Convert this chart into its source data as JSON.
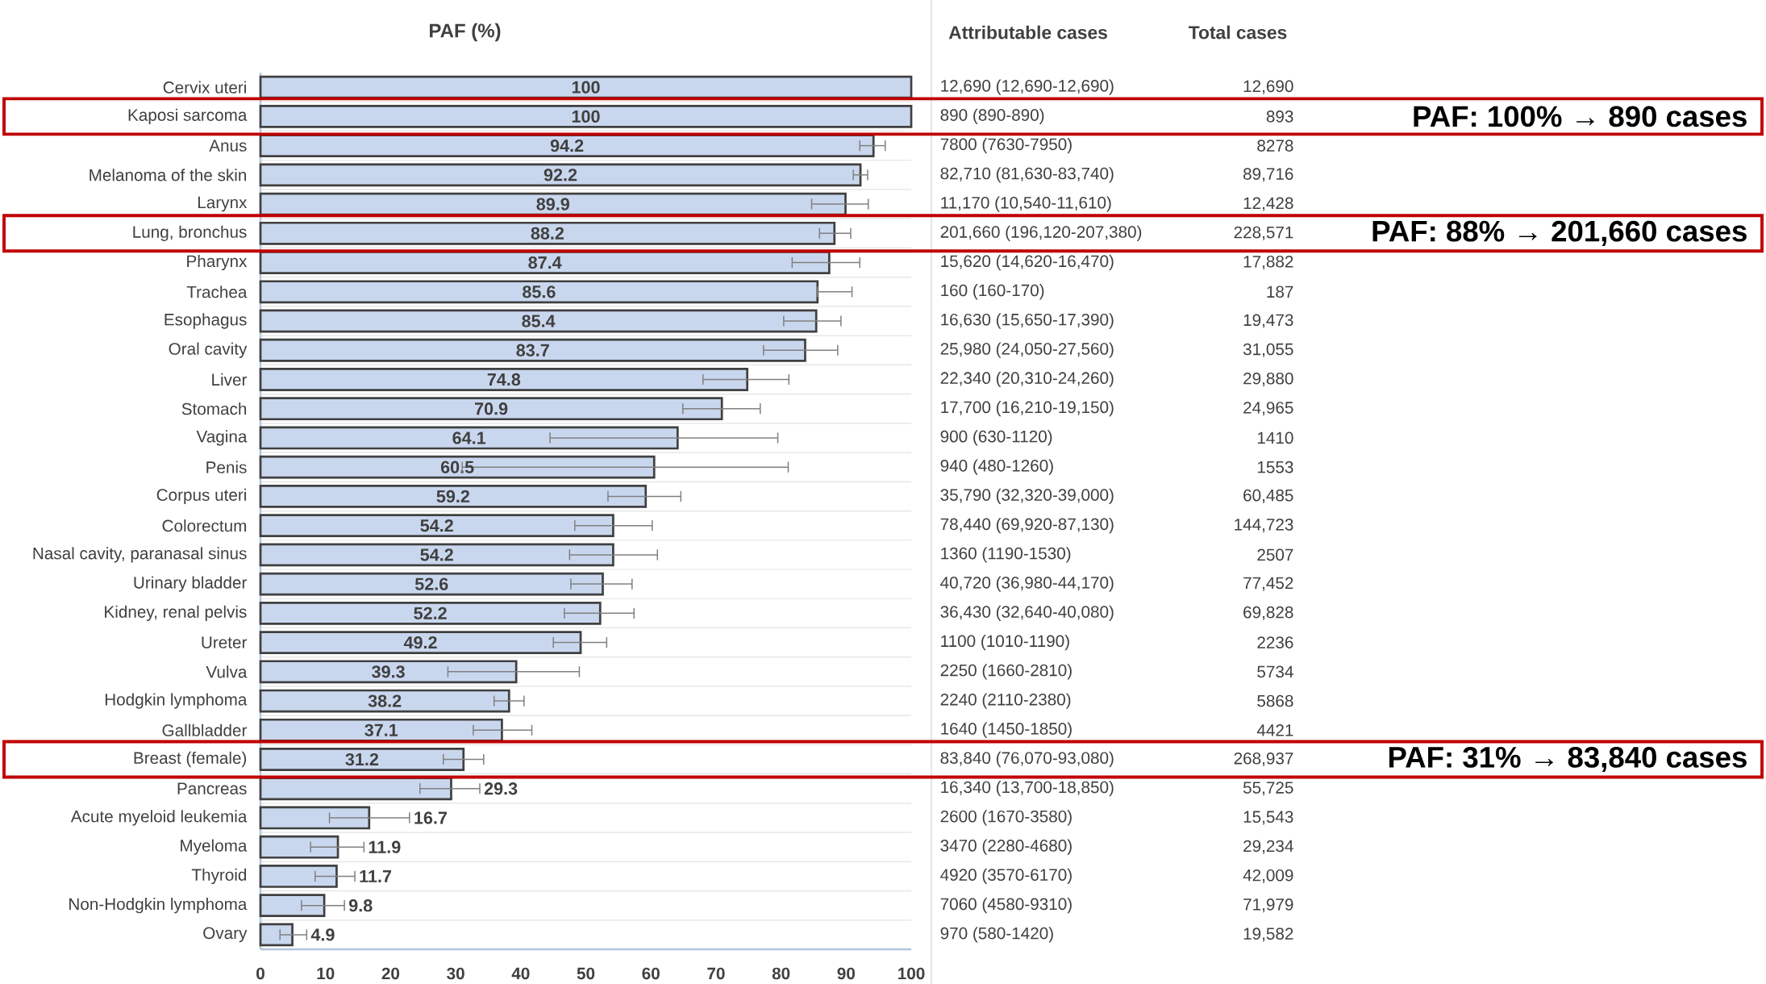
{
  "chart_data": {
    "type": "bar",
    "orientation": "horizontal",
    "title": "PAF (%)",
    "categories": [
      "Cervix uteri",
      "Kaposi sarcoma",
      "Anus",
      "Melanoma of the skin",
      "Larynx",
      "Lung, bronchus",
      "Pharynx",
      "Trachea",
      "Esophagus",
      "Oral cavity",
      "Liver",
      "Stomach",
      "Vagina",
      "Penis",
      "Corpus uteri",
      "Colorectum",
      "Nasal cavity, paranasal sinus",
      "Urinary bladder",
      "Kidney, renal pelvis",
      "Ureter",
      "Vulva",
      "Hodgkin lymphoma",
      "Gallbladder",
      "Breast (female)",
      "Pancreas",
      "Acute myeloid leukemia",
      "Myeloma",
      "Thyroid",
      "Non-Hodgkin lymphoma",
      "Ovary"
    ],
    "values": [
      100,
      100,
      94.2,
      92.2,
      89.9,
      88.2,
      87.4,
      85.6,
      85.4,
      83.7,
      74.8,
      70.9,
      64.1,
      60.5,
      59.2,
      54.2,
      54.2,
      52.6,
      52.2,
      49.2,
      39.3,
      38.2,
      37.1,
      31.2,
      29.3,
      16.7,
      11.9,
      11.7,
      9.8,
      4.9
    ],
    "errors": [
      null,
      null,
      [
        92.1,
        96.0
      ],
      [
        91.1,
        93.3
      ],
      [
        84.7,
        93.4
      ],
      [
        85.9,
        90.7
      ],
      [
        81.7,
        92.1
      ],
      [
        85.6,
        90.9
      ],
      [
        80.4,
        89.2
      ],
      [
        77.3,
        88.7
      ],
      [
        68.0,
        81.2
      ],
      [
        64.9,
        76.8
      ],
      [
        44.5,
        79.5
      ],
      [
        31,
        81.1
      ],
      [
        53.4,
        64.6
      ],
      [
        48.3,
        60.2
      ],
      [
        47.5,
        61.0
      ],
      [
        47.7,
        57.1
      ],
      [
        46.7,
        57.4
      ],
      [
        45.0,
        53.2
      ],
      [
        28.8,
        49.0
      ],
      [
        35.9,
        40.5
      ],
      [
        32.7,
        41.7
      ],
      [
        28.1,
        34.3
      ],
      [
        24.5,
        33.7
      ],
      [
        10.6,
        22.9
      ],
      [
        7.7,
        15.9
      ],
      [
        8.4,
        14.5
      ],
      [
        6.3,
        12.9
      ],
      [
        3.0,
        7.1
      ]
    ],
    "color": "#c9d7ee",
    "data_labels": true,
    "grid": "y",
    "xlim": [
      0,
      100
    ],
    "xticks": [
      0,
      10,
      20,
      30,
      40,
      50,
      60,
      70,
      80,
      90,
      100
    ],
    "annotations": [
      "Attributable cases",
      "Total cases",
      "12,690 (12,690-12,690)",
      "890 (890-890)",
      "7800 (7630-7950)",
      "82,710 (81,630-83,740)",
      "11,170 (10,540-11,610)",
      "201,660 (196,120-207,380)",
      "15,620 (14,620-16,470)",
      "160 (160-170)",
      "16,630 (15,650-17,390)",
      "25,980 (24,050-27,560)",
      "22,340 (20,310-24,260)",
      "17,700 (16,210-19,150)",
      "900 (630-1120)",
      "940 (480-1260)",
      "35,790 (32,320-39,000)",
      "78,440 (69,920-87,130)",
      "1360 (1190-1530)",
      "40,720 (36,980-44,170)",
      "36,430 (32,640-40,080)",
      "1100 (1010-1190)",
      "2250 (1660-2810)",
      "2240 (2110-2380)",
      "1640 (1450-1850)",
      "83,840 (76,070-93,080)",
      "16,340 (13,700-18,850)",
      "2600 (1670-3580)",
      "3470 (2280-4680)",
      "4920 (3570-6170)",
      "7060 (4580-9310)",
      "970 (580-1420)",
      "12,690",
      "893",
      "8278",
      "89,716",
      "12,428",
      "228,571",
      "17,882",
      "187",
      "19,473",
      "31,055",
      "29,880",
      "24,965",
      "1410",
      "1553",
      "60,485",
      "144,723",
      "2507",
      "77,452",
      "69,828",
      "2236",
      "5734",
      "5868",
      "4421",
      "268,937",
      "55,725",
      "15,543",
      "29,234",
      "42,009",
      "71,979",
      "19,582",
      "PAF: 100% → 890 cases",
      "PAF: 88% → 201,660 cases",
      "PAF: 31% → 83,840 cases"
    ]
  }
}
